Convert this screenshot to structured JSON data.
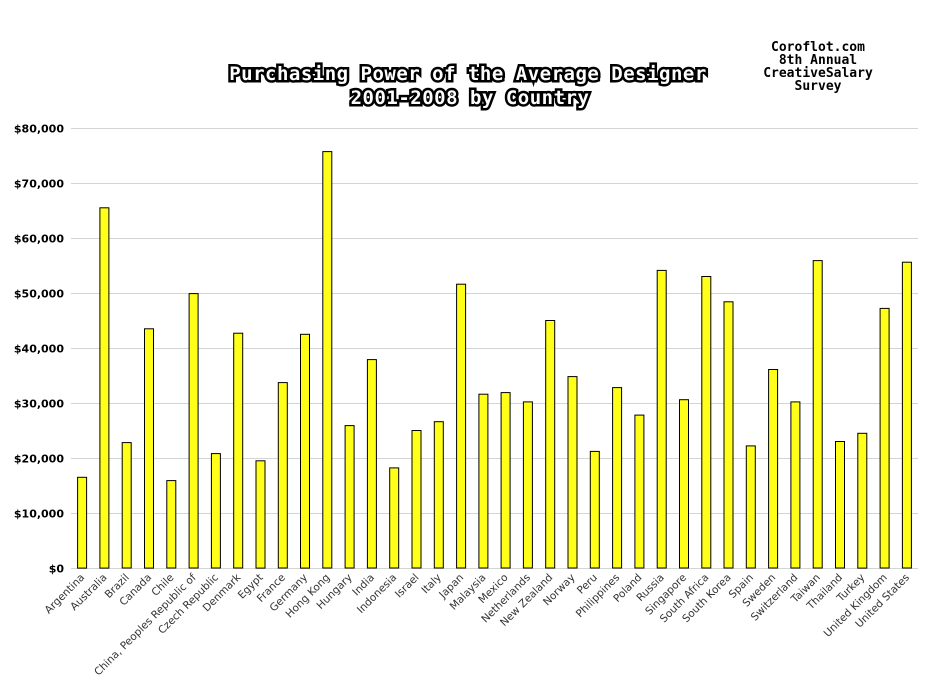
{
  "chart_data": {
    "type": "bar",
    "title_lines": [
      "Purchasing Power of the Average Designer",
      "2001-2008 by Country"
    ],
    "note_lines": [
      "Coroflot.com",
      "8th Annual",
      "CreativeSalary",
      "Survey"
    ],
    "xlabel": "",
    "ylabel": "",
    "ylim": [
      0,
      80000
    ],
    "yticks": [
      0,
      10000,
      20000,
      30000,
      40000,
      50000,
      60000,
      70000,
      80000
    ],
    "ytick_labels": [
      "$0",
      "$10,000",
      "$20,000",
      "$30,000",
      "$40,000",
      "$50,000",
      "$60,000",
      "$70,000",
      "$80,000"
    ],
    "grid": true,
    "bar_color": "#ffff1a",
    "categories": [
      "Argentina",
      "Australia",
      "Brazil",
      "Canada",
      "Chile",
      "China, Peoples Republic of",
      "Czech Republic",
      "Denmark",
      "Egypt",
      "France",
      "Germany",
      "Hong Kong",
      "Hungary",
      "India",
      "Indonesia",
      "Israel",
      "Italy",
      "Japan",
      "Malaysia",
      "Mexico",
      "Netherlands",
      "New Zealand",
      "Norway",
      "Peru",
      "Philippines",
      "Poland",
      "Russia",
      "Singapore",
      "South Africa",
      "South Korea",
      "Spain",
      "Sweden",
      "Switzerland",
      "Taiwan",
      "Thailand",
      "Turkey",
      "United Kingdom",
      "United States"
    ],
    "values": [
      16500,
      65500,
      22800,
      43500,
      15900,
      49900,
      20800,
      42700,
      19500,
      33700,
      42500,
      75700,
      25900,
      37900,
      18200,
      25000,
      26600,
      51600,
      31600,
      31900,
      30200,
      45000,
      34800,
      21200,
      32800,
      27800,
      54100,
      30600,
      53000,
      48400,
      22200,
      36100,
      30200,
      55900,
      23000,
      24500,
      47200,
      55600
    ]
  }
}
